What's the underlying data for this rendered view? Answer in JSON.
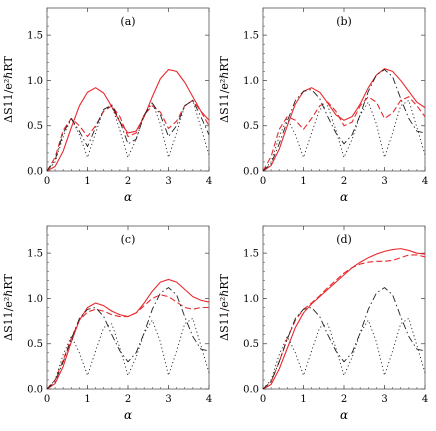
{
  "chart_data": [
    {
      "type": "line",
      "panel_label": "(a)",
      "xlabel": "α",
      "ylabel": "ΔS11/e²ℏRT",
      "xlim": [
        0,
        4
      ],
      "ylim": [
        0,
        1.8
      ],
      "x_ticks": [
        "0",
        "1",
        "2",
        "3",
        "4"
      ],
      "y_ticks": [
        "0.0",
        "0.5",
        "1.0",
        "1.5"
      ],
      "series": [
        {
          "style": "solid",
          "color": "#e8292e",
          "x": [
            0,
            0.2,
            0.4,
            0.6,
            0.8,
            1.0,
            1.2,
            1.4,
            1.6,
            1.8,
            2.0,
            2.2,
            2.4,
            2.6,
            2.8,
            3.0,
            3.2,
            3.4,
            3.6,
            3.8,
            4.0
          ],
          "y": [
            0,
            0.05,
            0.22,
            0.48,
            0.72,
            0.87,
            0.92,
            0.86,
            0.71,
            0.54,
            0.42,
            0.44,
            0.6,
            0.82,
            1.02,
            1.12,
            1.1,
            0.98,
            0.82,
            0.66,
            0.56
          ]
        },
        {
          "style": "dashed",
          "color": "#e8292e",
          "x": [
            0,
            0.2,
            0.4,
            0.6,
            0.8,
            1.0,
            1.2,
            1.4,
            1.6,
            1.8,
            2.0,
            2.2,
            2.4,
            2.6,
            2.8,
            3.0,
            3.2,
            3.4,
            3.6,
            3.8,
            4.0
          ],
          "y": [
            0,
            0.15,
            0.45,
            0.58,
            0.5,
            0.38,
            0.5,
            0.66,
            0.72,
            0.6,
            0.38,
            0.42,
            0.62,
            0.72,
            0.65,
            0.47,
            0.55,
            0.72,
            0.78,
            0.66,
            0.5
          ]
        },
        {
          "style": "dashdot",
          "color": "#222222",
          "x": [
            0,
            0.2,
            0.4,
            0.6,
            0.8,
            1.0,
            1.2,
            1.4,
            1.6,
            1.8,
            2.0,
            2.2,
            2.4,
            2.6,
            2.8,
            3.0,
            3.2,
            3.4,
            3.6,
            3.8,
            4.0
          ],
          "y": [
            0,
            0.12,
            0.42,
            0.58,
            0.44,
            0.27,
            0.48,
            0.68,
            0.73,
            0.55,
            0.3,
            0.35,
            0.62,
            0.75,
            0.62,
            0.38,
            0.5,
            0.72,
            0.78,
            0.6,
            0.4
          ]
        },
        {
          "style": "dotted",
          "color": "#222222",
          "x": [
            0,
            0.2,
            0.4,
            0.6,
            0.8,
            1.0,
            1.2,
            1.4,
            1.6,
            1.8,
            2.0,
            2.2,
            2.4,
            2.6,
            2.8,
            3.0,
            3.2,
            3.4,
            3.6,
            3.8,
            4.0
          ],
          "y": [
            0,
            0.1,
            0.38,
            0.58,
            0.4,
            0.15,
            0.42,
            0.68,
            0.72,
            0.45,
            0.15,
            0.35,
            0.62,
            0.76,
            0.52,
            0.15,
            0.42,
            0.72,
            0.78,
            0.48,
            0.18
          ]
        }
      ]
    },
    {
      "type": "line",
      "panel_label": "(b)",
      "xlabel": "α",
      "ylabel": "ΔS11/e²ℏRT",
      "xlim": [
        0,
        4
      ],
      "ylim": [
        0,
        1.8
      ],
      "x_ticks": [
        "0",
        "1",
        "2",
        "3",
        "4"
      ],
      "y_ticks": [
        "0.0",
        "0.5",
        "1.0",
        "1.5"
      ],
      "series": [
        {
          "style": "solid",
          "color": "#e8292e",
          "x": [
            0,
            0.2,
            0.4,
            0.6,
            0.8,
            1.0,
            1.2,
            1.4,
            1.6,
            1.8,
            2.0,
            2.2,
            2.4,
            2.6,
            2.8,
            3.0,
            3.2,
            3.4,
            3.6,
            3.8,
            4.0
          ],
          "y": [
            0,
            0.06,
            0.24,
            0.5,
            0.74,
            0.88,
            0.92,
            0.87,
            0.75,
            0.62,
            0.56,
            0.6,
            0.74,
            0.92,
            1.06,
            1.13,
            1.1,
            1.0,
            0.88,
            0.76,
            0.7
          ]
        },
        {
          "style": "dashed",
          "color": "#e8292e",
          "x": [
            0,
            0.2,
            0.4,
            0.6,
            0.8,
            1.0,
            1.2,
            1.4,
            1.6,
            1.8,
            2.0,
            2.2,
            2.4,
            2.6,
            2.8,
            3.0,
            3.2,
            3.4,
            3.6,
            3.8,
            4.0
          ],
          "y": [
            0,
            0.16,
            0.46,
            0.6,
            0.56,
            0.46,
            0.58,
            0.72,
            0.76,
            0.66,
            0.5,
            0.54,
            0.72,
            0.82,
            0.76,
            0.58,
            0.64,
            0.78,
            0.82,
            0.72,
            0.6
          ]
        },
        {
          "style": "dashdot",
          "color": "#222222",
          "x": [
            0,
            0.2,
            0.4,
            0.6,
            0.8,
            1.0,
            1.2,
            1.4,
            1.6,
            1.8,
            2.0,
            2.2,
            2.4,
            2.6,
            2.8,
            3.0,
            3.2,
            3.4,
            3.6,
            3.8,
            4.0
          ],
          "y": [
            0,
            0.08,
            0.3,
            0.55,
            0.78,
            0.88,
            0.9,
            0.8,
            0.6,
            0.42,
            0.3,
            0.4,
            0.62,
            0.88,
            1.06,
            1.12,
            1.04,
            0.8,
            0.58,
            0.44,
            0.42
          ]
        },
        {
          "style": "dotted",
          "color": "#222222",
          "x": [
            0,
            0.2,
            0.4,
            0.6,
            0.8,
            1.0,
            1.2,
            1.4,
            1.6,
            1.8,
            2.0,
            2.2,
            2.4,
            2.6,
            2.8,
            3.0,
            3.2,
            3.4,
            3.6,
            3.8,
            4.0
          ],
          "y": [
            0,
            0.1,
            0.38,
            0.58,
            0.4,
            0.15,
            0.42,
            0.68,
            0.72,
            0.45,
            0.15,
            0.35,
            0.62,
            0.76,
            0.52,
            0.15,
            0.42,
            0.72,
            0.78,
            0.48,
            0.18
          ]
        }
      ]
    },
    {
      "type": "line",
      "panel_label": "(c)",
      "xlabel": "α",
      "ylabel": "ΔS11/e²ℏRT",
      "xlim": [
        0,
        4
      ],
      "ylim": [
        0,
        1.8
      ],
      "x_ticks": [
        "0",
        "1",
        "2",
        "3",
        "4"
      ],
      "y_ticks": [
        "0.0",
        "0.5",
        "1.0",
        "1.5"
      ],
      "series": [
        {
          "style": "solid",
          "color": "#e8292e",
          "x": [
            0,
            0.2,
            0.4,
            0.6,
            0.8,
            1.0,
            1.2,
            1.4,
            1.6,
            1.8,
            2.0,
            2.2,
            2.4,
            2.6,
            2.8,
            3.0,
            3.2,
            3.4,
            3.6,
            3.8,
            4.0
          ],
          "y": [
            0,
            0.06,
            0.25,
            0.52,
            0.76,
            0.9,
            0.95,
            0.92,
            0.86,
            0.82,
            0.8,
            0.84,
            0.95,
            1.08,
            1.18,
            1.21,
            1.18,
            1.1,
            1.02,
            0.98,
            0.96
          ]
        },
        {
          "style": "dashed",
          "color": "#e8292e",
          "x": [
            0,
            0.2,
            0.4,
            0.6,
            0.8,
            1.0,
            1.2,
            1.4,
            1.6,
            1.8,
            2.0,
            2.2,
            2.4,
            2.6,
            2.8,
            3.0,
            3.2,
            3.4,
            3.6,
            3.8,
            4.0
          ],
          "y": [
            0,
            0.1,
            0.32,
            0.56,
            0.76,
            0.85,
            0.88,
            0.86,
            0.82,
            0.8,
            0.8,
            0.84,
            0.92,
            1.0,
            1.04,
            1.02,
            0.96,
            0.9,
            0.88,
            0.9,
            0.9
          ]
        },
        {
          "style": "dashdot",
          "color": "#222222",
          "x": [
            0,
            0.2,
            0.4,
            0.6,
            0.8,
            1.0,
            1.2,
            1.4,
            1.6,
            1.8,
            2.0,
            2.2,
            2.4,
            2.6,
            2.8,
            3.0,
            3.2,
            3.4,
            3.6,
            3.8,
            4.0
          ],
          "y": [
            0,
            0.08,
            0.3,
            0.55,
            0.78,
            0.88,
            0.9,
            0.8,
            0.6,
            0.42,
            0.3,
            0.4,
            0.62,
            0.88,
            1.06,
            1.12,
            1.04,
            0.8,
            0.58,
            0.44,
            0.42
          ]
        },
        {
          "style": "dotted",
          "color": "#222222",
          "x": [
            0,
            0.2,
            0.4,
            0.6,
            0.8,
            1.0,
            1.2,
            1.4,
            1.6,
            1.8,
            2.0,
            2.2,
            2.4,
            2.6,
            2.8,
            3.0,
            3.2,
            3.4,
            3.6,
            3.8,
            4.0
          ],
          "y": [
            0,
            0.1,
            0.38,
            0.58,
            0.4,
            0.15,
            0.42,
            0.68,
            0.72,
            0.45,
            0.15,
            0.35,
            0.62,
            0.76,
            0.52,
            0.15,
            0.42,
            0.72,
            0.78,
            0.48,
            0.18
          ]
        }
      ]
    },
    {
      "type": "line",
      "panel_label": "(d)",
      "xlabel": "α",
      "ylabel": "ΔS11/e²ℏRT",
      "xlim": [
        0,
        4
      ],
      "ylim": [
        0,
        1.8
      ],
      "x_ticks": [
        "0",
        "1",
        "2",
        "3",
        "4"
      ],
      "y_ticks": [
        "0.0",
        "0.5",
        "1.0",
        "1.5"
      ],
      "series": [
        {
          "style": "solid",
          "color": "#e8292e",
          "x": [
            0,
            0.2,
            0.4,
            0.6,
            0.8,
            1.0,
            1.2,
            1.4,
            1.6,
            1.8,
            2.0,
            2.2,
            2.4,
            2.6,
            2.8,
            3.0,
            3.2,
            3.4,
            3.6,
            3.8,
            4.0
          ],
          "y": [
            0,
            0.05,
            0.22,
            0.45,
            0.68,
            0.84,
            0.94,
            1.02,
            1.1,
            1.18,
            1.26,
            1.34,
            1.4,
            1.45,
            1.49,
            1.52,
            1.54,
            1.55,
            1.53,
            1.5,
            1.49
          ]
        },
        {
          "style": "dashed",
          "color": "#e8292e",
          "x": [
            0,
            0.2,
            0.4,
            0.6,
            0.8,
            1.0,
            1.2,
            1.4,
            1.6,
            1.8,
            2.0,
            2.2,
            2.4,
            2.6,
            2.8,
            3.0,
            3.2,
            3.4,
            3.6,
            3.8,
            4.0
          ],
          "y": [
            0,
            0.08,
            0.3,
            0.56,
            0.76,
            0.88,
            0.95,
            1.03,
            1.12,
            1.2,
            1.28,
            1.34,
            1.38,
            1.4,
            1.41,
            1.41,
            1.42,
            1.45,
            1.48,
            1.48,
            1.46
          ]
        },
        {
          "style": "dashdot",
          "color": "#222222",
          "x": [
            0,
            0.2,
            0.4,
            0.6,
            0.8,
            1.0,
            1.2,
            1.4,
            1.6,
            1.8,
            2.0,
            2.2,
            2.4,
            2.6,
            2.8,
            3.0,
            3.2,
            3.4,
            3.6,
            3.8,
            4.0
          ],
          "y": [
            0,
            0.08,
            0.3,
            0.55,
            0.78,
            0.88,
            0.9,
            0.8,
            0.6,
            0.42,
            0.3,
            0.4,
            0.62,
            0.88,
            1.06,
            1.12,
            1.04,
            0.8,
            0.58,
            0.44,
            0.42
          ]
        },
        {
          "style": "dotted",
          "color": "#222222",
          "x": [
            0,
            0.2,
            0.4,
            0.6,
            0.8,
            1.0,
            1.2,
            1.4,
            1.6,
            1.8,
            2.0,
            2.2,
            2.4,
            2.6,
            2.8,
            3.0,
            3.2,
            3.4,
            3.6,
            3.8,
            4.0
          ],
          "y": [
            0,
            0.1,
            0.38,
            0.58,
            0.4,
            0.15,
            0.42,
            0.68,
            0.72,
            0.45,
            0.15,
            0.35,
            0.62,
            0.76,
            0.52,
            0.15,
            0.42,
            0.72,
            0.78,
            0.48,
            0.18
          ]
        }
      ]
    }
  ]
}
